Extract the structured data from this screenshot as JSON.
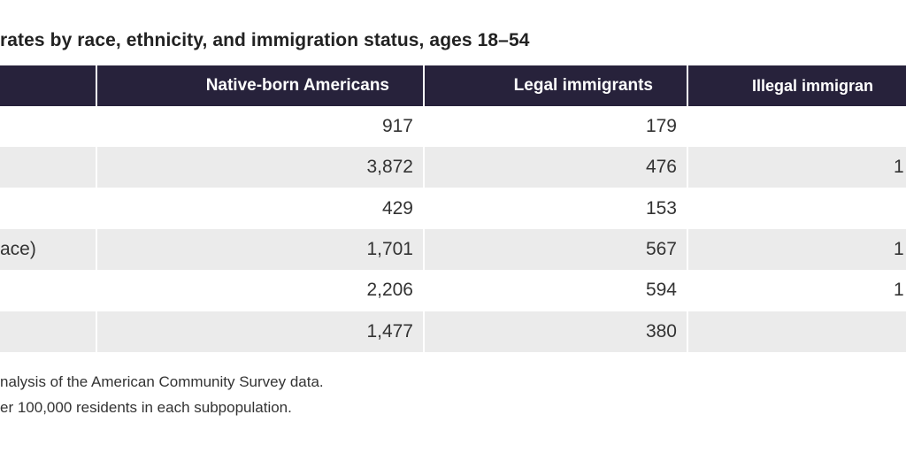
{
  "chart_data": {
    "type": "table",
    "title": "rates by race, ethnicity, and immigration status, ages 18–54",
    "columns": [
      "",
      "Native-born Americans",
      "Legal immigrants",
      "Illegal immigran"
    ],
    "rows": [
      {
        "label": "",
        "values": [
          "917",
          "179",
          ""
        ]
      },
      {
        "label": "",
        "values": [
          "3,872",
          "476",
          "1"
        ]
      },
      {
        "label": "",
        "values": [
          "429",
          "153",
          ""
        ]
      },
      {
        "label": "ace)",
        "values": [
          "1,701",
          "567",
          "1"
        ]
      },
      {
        "label": "",
        "values": [
          "2,206",
          "594",
          "1"
        ]
      },
      {
        "label": "",
        "values": [
          "1,477",
          "380",
          ""
        ]
      }
    ],
    "header_color": "#27223b",
    "stripe_color": "#ebebeb"
  },
  "footnotes": [
    "nalysis of the American Community Survey data.",
    "er 100,000 residents in each subpopulation."
  ]
}
